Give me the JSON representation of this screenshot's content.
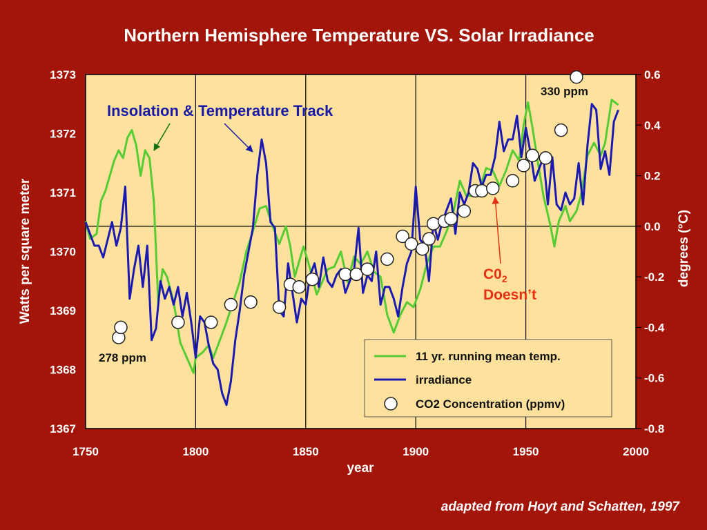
{
  "slide": {
    "title": "Northern Hemisphere Temperature VS. Solar Irradiance",
    "credit": "adapted from Hoyt and Schatten, 1997"
  },
  "colors": {
    "background": "#a31508",
    "plot_bg": "#fde19c",
    "temperature": "#55cc33",
    "irradiance": "#1a1ab3",
    "co2_fill": "#ffffff",
    "annotation_blue": "#1a1aa8",
    "annotation_red": "#e63012"
  },
  "chart_data": {
    "type": "line",
    "xlabel": "year",
    "ylabel": "Watts per square meter",
    "ylabel_right": "degrees (°C)",
    "xlim": [
      1750,
      2000
    ],
    "ylim": [
      1367,
      1373
    ],
    "ylim_right": [
      -0.8,
      0.6
    ],
    "xticks": [
      "1750",
      "1800",
      "1850",
      "1900",
      "1950",
      "2000"
    ],
    "yticks": [
      "1367",
      "1368",
      "1369",
      "1370",
      "1371",
      "1372",
      "1373"
    ],
    "yticks_right": [
      "-0.8",
      "-0.6",
      "-0.4",
      "-0.2",
      "0.0",
      "0.2",
      "0.4",
      "0.6"
    ],
    "grid": true,
    "legend_position": "bottom-right",
    "legend": [
      {
        "label": "11 yr.  running mean temp.",
        "kind": "line"
      },
      {
        "label": "irradiance",
        "kind": "line"
      },
      {
        "label": "CO2 Concentration (ppmv)",
        "kind": "marker"
      }
    ],
    "series": [
      {
        "name": "11 yr.  running mean temp.",
        "axis": "right",
        "x": [
          1750,
          1752,
          1755,
          1757,
          1759,
          1761,
          1763,
          1765,
          1767,
          1769,
          1771,
          1773,
          1775,
          1777,
          1779,
          1781,
          1783,
          1785,
          1787,
          1790,
          1793,
          1796,
          1799,
          1800,
          1803,
          1806,
          1808,
          1811,
          1814,
          1817,
          1820,
          1823,
          1826,
          1829,
          1832,
          1835,
          1838,
          1841,
          1843,
          1845,
          1847,
          1849,
          1852,
          1855,
          1858,
          1860,
          1863,
          1866,
          1869,
          1872,
          1875,
          1878,
          1881,
          1884,
          1887,
          1890,
          1893,
          1896,
          1899,
          1902,
          1905,
          1908,
          1911,
          1914,
          1917,
          1920,
          1923,
          1926,
          1929,
          1932,
          1935,
          1938,
          1941,
          1944,
          1947,
          1949,
          1951,
          1953,
          1955,
          1958,
          1961,
          1963,
          1965,
          1968,
          1970,
          1973,
          1975,
          1978,
          1981,
          1984,
          1986,
          1989,
          1992
        ],
        "y": [
          0.02,
          -0.05,
          -0.03,
          0.1,
          0.14,
          0.2,
          0.26,
          0.3,
          0.27,
          0.35,
          0.38,
          0.32,
          0.2,
          0.3,
          0.27,
          0.1,
          -0.3,
          -0.17,
          -0.2,
          -0.3,
          -0.46,
          -0.52,
          -0.58,
          -0.52,
          -0.5,
          -0.47,
          -0.52,
          -0.45,
          -0.38,
          -0.3,
          -0.22,
          -0.1,
          -0.02,
          0.07,
          0.08,
          0.0,
          -0.07,
          0.0,
          -0.08,
          -0.2,
          -0.14,
          -0.08,
          -0.17,
          -0.27,
          -0.21,
          -0.17,
          -0.16,
          -0.1,
          -0.22,
          -0.12,
          -0.15,
          -0.1,
          -0.18,
          -0.2,
          -0.35,
          -0.42,
          -0.35,
          -0.3,
          -0.32,
          -0.25,
          -0.15,
          -0.08,
          -0.08,
          -0.02,
          0.05,
          0.18,
          0.12,
          0.12,
          0.15,
          0.23,
          0.22,
          0.16,
          0.22,
          0.3,
          0.26,
          0.4,
          0.49,
          0.39,
          0.28,
          0.12,
          0.01,
          -0.08,
          0.02,
          0.08,
          0.02,
          0.06,
          0.12,
          0.28,
          0.33,
          0.28,
          0.33,
          0.5,
          0.48
        ]
      },
      {
        "name": "irradiance",
        "axis": "left",
        "x": [
          1750,
          1752,
          1754,
          1756,
          1758,
          1760,
          1762,
          1764,
          1766,
          1768,
          1770,
          1772,
          1774,
          1776,
          1778,
          1780,
          1782,
          1784,
          1786,
          1788,
          1790,
          1792,
          1794,
          1796,
          1798,
          1800,
          1802,
          1804,
          1806,
          1808,
          1810,
          1812,
          1814,
          1816,
          1818,
          1820,
          1822,
          1824,
          1826,
          1828,
          1830,
          1832,
          1834,
          1836,
          1838,
          1840,
          1842,
          1844,
          1846,
          1848,
          1850,
          1852,
          1854,
          1856,
          1858,
          1860,
          1862,
          1864,
          1866,
          1868,
          1870,
          1872,
          1874,
          1876,
          1878,
          1880,
          1882,
          1884,
          1886,
          1888,
          1890,
          1892,
          1894,
          1896,
          1898,
          1900,
          1902,
          1904,
          1906,
          1908,
          1910,
          1912,
          1914,
          1916,
          1918,
          1920,
          1922,
          1924,
          1926,
          1928,
          1930,
          1932,
          1934,
          1936,
          1938,
          1940,
          1942,
          1944,
          1946,
          1948,
          1950,
          1952,
          1954,
          1956,
          1958,
          1960,
          1962,
          1964,
          1966,
          1968,
          1970,
          1972,
          1974,
          1976,
          1978,
          1980,
          1982,
          1984,
          1986,
          1988,
          1990,
          1992
        ],
        "y": [
          1370.5,
          1370.3,
          1370.1,
          1370.1,
          1369.9,
          1370.2,
          1370.5,
          1370.1,
          1370.4,
          1371.1,
          1369.2,
          1369.7,
          1370.1,
          1369.4,
          1370.1,
          1368.5,
          1368.7,
          1369.5,
          1369.2,
          1369.4,
          1369.1,
          1369.4,
          1368.9,
          1369.3,
          1368.8,
          1368.2,
          1368.9,
          1368.8,
          1368.4,
          1368.1,
          1368.0,
          1367.6,
          1367.4,
          1367.8,
          1368.5,
          1369.0,
          1369.6,
          1370.0,
          1370.4,
          1371.3,
          1371.9,
          1371.5,
          1370.5,
          1370.4,
          1369.0,
          1368.9,
          1369.8,
          1369.3,
          1368.8,
          1369.2,
          1369.1,
          1369.6,
          1369.8,
          1369.4,
          1369.9,
          1369.5,
          1369.4,
          1369.6,
          1369.7,
          1369.3,
          1369.5,
          1369.7,
          1370.4,
          1369.3,
          1369.6,
          1369.5,
          1370.0,
          1369.1,
          1369.4,
          1369.4,
          1369.2,
          1368.9,
          1369.4,
          1369.8,
          1370.0,
          1371.1,
          1370.2,
          1370.1,
          1369.5,
          1370.5,
          1370.2,
          1370.5,
          1370.7,
          1370.9,
          1370.3,
          1371.0,
          1370.8,
          1371.0,
          1371.5,
          1371.4,
          1371.1,
          1371.3,
          1371.3,
          1371.6,
          1372.2,
          1371.7,
          1371.9,
          1371.9,
          1372.3,
          1371.6,
          1372.1,
          1371.7,
          1371.2,
          1371.4,
          1371.6,
          1370.8,
          1371.6,
          1370.8,
          1370.7,
          1371.0,
          1370.8,
          1370.9,
          1371.5,
          1370.8,
          1371.8,
          1372.5,
          1372.4,
          1371.4,
          1371.7,
          1371.3,
          1372.2,
          1372.4
        ]
      },
      {
        "name": "CO2 Concentration (ppmv)",
        "axis": "right",
        "style": "marker",
        "x": [
          1765,
          1766,
          1792,
          1807,
          1816,
          1825,
          1838,
          1843,
          1847,
          1853,
          1868,
          1873,
          1878,
          1887,
          1894,
          1898,
          1903,
          1906,
          1908,
          1913,
          1916,
          1922,
          1927,
          1930,
          1935,
          1944,
          1949,
          1953,
          1959,
          1966,
          1973
        ],
        "y": [
          -0.44,
          -0.4,
          -0.38,
          -0.38,
          -0.31,
          -0.3,
          -0.32,
          -0.23,
          -0.24,
          -0.21,
          -0.19,
          -0.19,
          -0.17,
          -0.13,
          -0.04,
          -0.07,
          -0.09,
          -0.05,
          0.01,
          0.02,
          0.03,
          0.06,
          0.14,
          0.14,
          0.15,
          0.18,
          0.24,
          0.28,
          0.27,
          0.38,
          0.59
        ]
      }
    ],
    "annotations": {
      "insolation": "Insolation & Temperature  Track",
      "co2_doesnt_line1": "C0",
      "co2_doesnt_sub": "2",
      "co2_doesnt_line2": "Doesn’t",
      "ppm_start": "278 ppm",
      "ppm_end": "330 ppm"
    }
  }
}
